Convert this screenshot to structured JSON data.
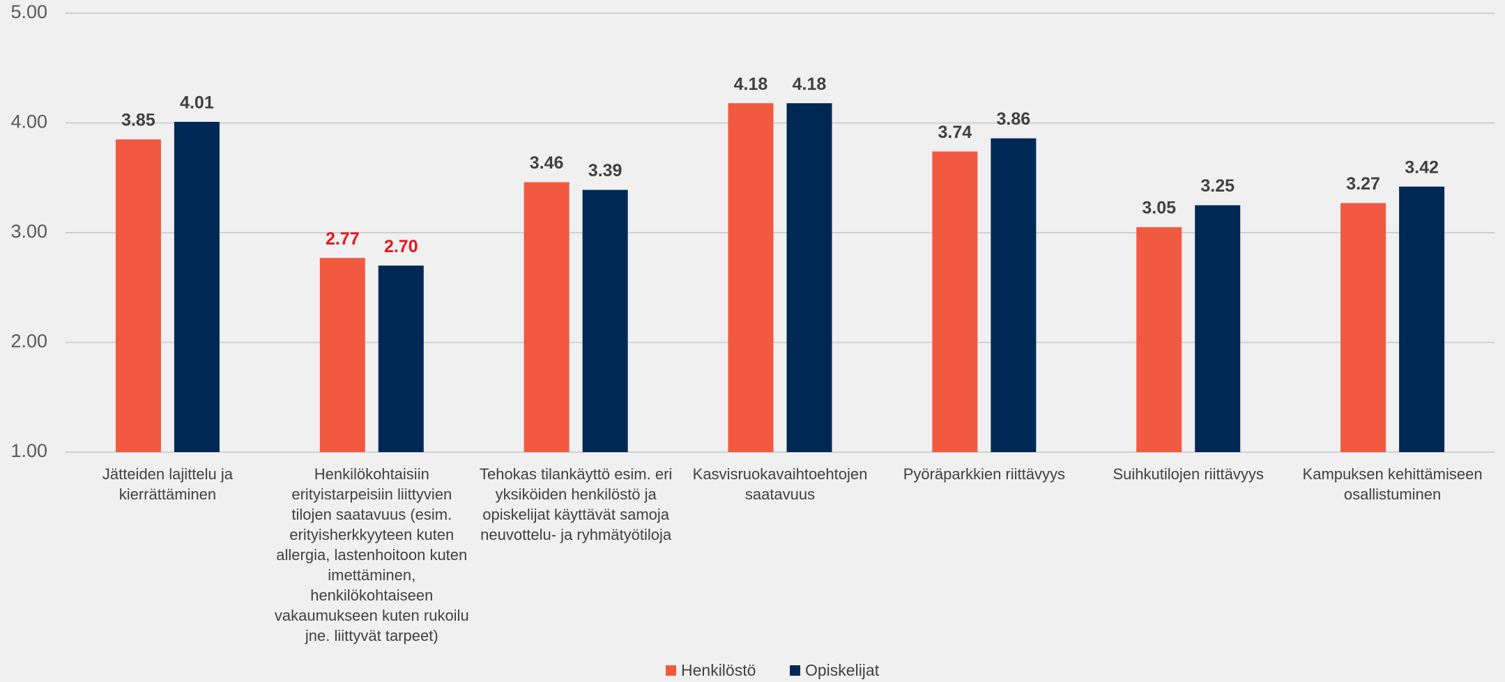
{
  "chart_data": {
    "type": "bar",
    "categories": [
      "Jätteiden lajittelu ja kierrättäminen",
      "Henkilökohtaisiin erityistarpeisiin liittyvien tilojen saatavuus (esim. erityisherkkyyteen kuten allergia, lastenhoitoon kuten imettäminen, henkilökohtaiseen vakaumukseen kuten rukoilu jne. liittyvät tarpeet)",
      "Tehokas tilankäyttö esim. eri yksiköiden henkilöstö ja opiskelijat käyttävät samoja neuvottelu- ja ryhmätyötiloja",
      "Kasvisruokavaihtoehtojen saatavuus",
      "Pyöräparkkien riittävyys",
      "Suihkutilojen riittävyys",
      "Kampuksen kehittämiseen osallistuminen"
    ],
    "series": [
      {
        "name": "Henkilöstö",
        "color": "#f15a40",
        "values": [
          3.85,
          2.77,
          3.46,
          4.18,
          3.74,
          3.05,
          3.27
        ],
        "value_labels": [
          "3.85",
          "2.77",
          "3.46",
          "4.18",
          "3.74",
          "3.05",
          "3.27"
        ],
        "value_label_colors": [
          "#404040",
          "#e8141c",
          "#404040",
          "#404040",
          "#404040",
          "#404040",
          "#404040"
        ]
      },
      {
        "name": "Opiskelijat",
        "color": "#002855",
        "values": [
          4.01,
          2.7,
          3.39,
          4.18,
          3.86,
          3.25,
          3.42
        ],
        "value_labels": [
          "4.01",
          "2.70",
          "3.39",
          "4.18",
          "3.86",
          "3.25",
          "3.42"
        ],
        "value_label_colors": [
          "#404040",
          "#e8141c",
          "#404040",
          "#404040",
          "#404040",
          "#404040",
          "#404040"
        ]
      }
    ],
    "ylim": [
      1,
      5
    ],
    "yticks": [
      {
        "value": 1,
        "label": "1.00"
      },
      {
        "value": 2,
        "label": "2.00"
      },
      {
        "value": 3,
        "label": "3.00"
      },
      {
        "value": 4,
        "label": "4.00"
      },
      {
        "value": 5,
        "label": "5.00"
      }
    ],
    "grid": true,
    "legend": "bottom"
  }
}
